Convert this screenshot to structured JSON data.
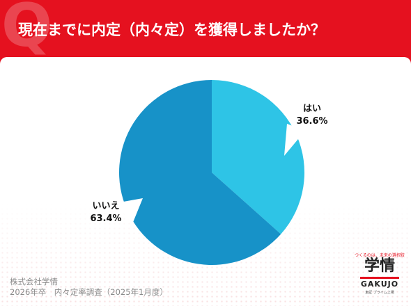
{
  "header": {
    "q_letter": "Q",
    "title": "現在までに内定（内々定）を獲得しましたか？"
  },
  "chart_data": {
    "type": "pie",
    "title": "現在までに内定（内々定）を獲得しましたか？",
    "slices": [
      {
        "label": "はい",
        "value": 36.6,
        "value_label": "36.6%",
        "color": "#2ec4e6"
      },
      {
        "label": "いいえ",
        "value": 63.4,
        "value_label": "63.4%",
        "color": "#1792c8"
      }
    ]
  },
  "source": {
    "line1": "株式会社学情",
    "line2": "2026年卒　内々定率調査（2025年1月度）"
  },
  "logo": {
    "tagline": "つくるのは、未来の選択肢",
    "main": "学情",
    "en": "GAKUJO",
    "sub": "東証 プライム上場"
  },
  "colors": {
    "brand_red": "#e5111f",
    "panel": "#ffffff",
    "label_line": "#ffffff"
  }
}
